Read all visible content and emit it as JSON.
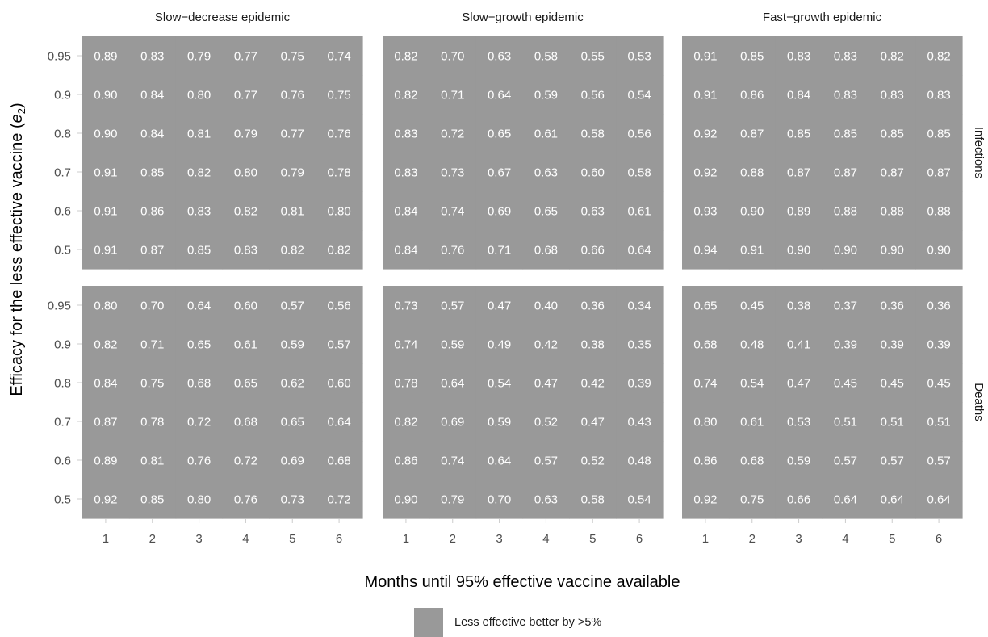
{
  "chart_data": {
    "type": "heatmap",
    "title": "",
    "xlabel": "Months until 95% effective vaccine available",
    "ylabel_prefix": "Efficacy for the less effective vaccine (",
    "ylabel_symbol": "e",
    "ylabel_subscript": "2",
    "ylabel_suffix": ")",
    "x": [
      "1",
      "2",
      "3",
      "4",
      "5",
      "6"
    ],
    "y": [
      "0.95",
      "0.9",
      "0.8",
      "0.7",
      "0.6",
      "0.5"
    ],
    "columns": [
      "Slow−decrease epidemic",
      "Slow−growth epidemic",
      "Fast−growth epidemic"
    ],
    "rows": [
      "Infections",
      "Deaths"
    ],
    "legend": {
      "label": "Less effective better by >5%",
      "color": "#999999",
      "placement": "bottom"
    },
    "cell_color": "#999999",
    "text_color": "#ffffff",
    "panels": [
      {
        "row": "Infections",
        "column": "Slow−decrease epidemic",
        "values": [
          [
            0.89,
            0.83,
            0.79,
            0.77,
            0.75,
            0.74
          ],
          [
            0.9,
            0.84,
            0.8,
            0.77,
            0.76,
            0.75
          ],
          [
            0.9,
            0.84,
            0.81,
            0.79,
            0.77,
            0.76
          ],
          [
            0.91,
            0.85,
            0.82,
            0.8,
            0.79,
            0.78
          ],
          [
            0.91,
            0.86,
            0.83,
            0.82,
            0.81,
            0.8
          ],
          [
            0.91,
            0.87,
            0.85,
            0.83,
            0.82,
            0.82
          ]
        ]
      },
      {
        "row": "Infections",
        "column": "Slow−growth epidemic",
        "values": [
          [
            0.82,
            0.7,
            0.63,
            0.58,
            0.55,
            0.53
          ],
          [
            0.82,
            0.71,
            0.64,
            0.59,
            0.56,
            0.54
          ],
          [
            0.83,
            0.72,
            0.65,
            0.61,
            0.58,
            0.56
          ],
          [
            0.83,
            0.73,
            0.67,
            0.63,
            0.6,
            0.58
          ],
          [
            0.84,
            0.74,
            0.69,
            0.65,
            0.63,
            0.61
          ],
          [
            0.84,
            0.76,
            0.71,
            0.68,
            0.66,
            0.64
          ]
        ]
      },
      {
        "row": "Infections",
        "column": "Fast−growth epidemic",
        "values": [
          [
            0.91,
            0.85,
            0.83,
            0.83,
            0.82,
            0.82
          ],
          [
            0.91,
            0.86,
            0.84,
            0.83,
            0.83,
            0.83
          ],
          [
            0.92,
            0.87,
            0.85,
            0.85,
            0.85,
            0.85
          ],
          [
            0.92,
            0.88,
            0.87,
            0.87,
            0.87,
            0.87
          ],
          [
            0.93,
            0.9,
            0.89,
            0.88,
            0.88,
            0.88
          ],
          [
            0.94,
            0.91,
            0.9,
            0.9,
            0.9,
            0.9
          ]
        ]
      },
      {
        "row": "Deaths",
        "column": "Slow−decrease epidemic",
        "values": [
          [
            0.8,
            0.7,
            0.64,
            0.6,
            0.57,
            0.56
          ],
          [
            0.82,
            0.71,
            0.65,
            0.61,
            0.59,
            0.57
          ],
          [
            0.84,
            0.75,
            0.68,
            0.65,
            0.62,
            0.6
          ],
          [
            0.87,
            0.78,
            0.72,
            0.68,
            0.65,
            0.64
          ],
          [
            0.89,
            0.81,
            0.76,
            0.72,
            0.69,
            0.68
          ],
          [
            0.92,
            0.85,
            0.8,
            0.76,
            0.73,
            0.72
          ]
        ]
      },
      {
        "row": "Deaths",
        "column": "Slow−growth epidemic",
        "values": [
          [
            0.73,
            0.57,
            0.47,
            0.4,
            0.36,
            0.34
          ],
          [
            0.74,
            0.59,
            0.49,
            0.42,
            0.38,
            0.35
          ],
          [
            0.78,
            0.64,
            0.54,
            0.47,
            0.42,
            0.39
          ],
          [
            0.82,
            0.69,
            0.59,
            0.52,
            0.47,
            0.43
          ],
          [
            0.86,
            0.74,
            0.64,
            0.57,
            0.52,
            0.48
          ],
          [
            0.9,
            0.79,
            0.7,
            0.63,
            0.58,
            0.54
          ]
        ]
      },
      {
        "row": "Deaths",
        "column": "Fast−growth epidemic",
        "values": [
          [
            0.65,
            0.45,
            0.38,
            0.37,
            0.36,
            0.36
          ],
          [
            0.68,
            0.48,
            0.41,
            0.39,
            0.39,
            0.39
          ],
          [
            0.74,
            0.54,
            0.47,
            0.45,
            0.45,
            0.45
          ],
          [
            0.8,
            0.61,
            0.53,
            0.51,
            0.51,
            0.51
          ],
          [
            0.86,
            0.68,
            0.59,
            0.57,
            0.57,
            0.57
          ],
          [
            0.92,
            0.75,
            0.66,
            0.64,
            0.64,
            0.64
          ]
        ]
      }
    ]
  }
}
